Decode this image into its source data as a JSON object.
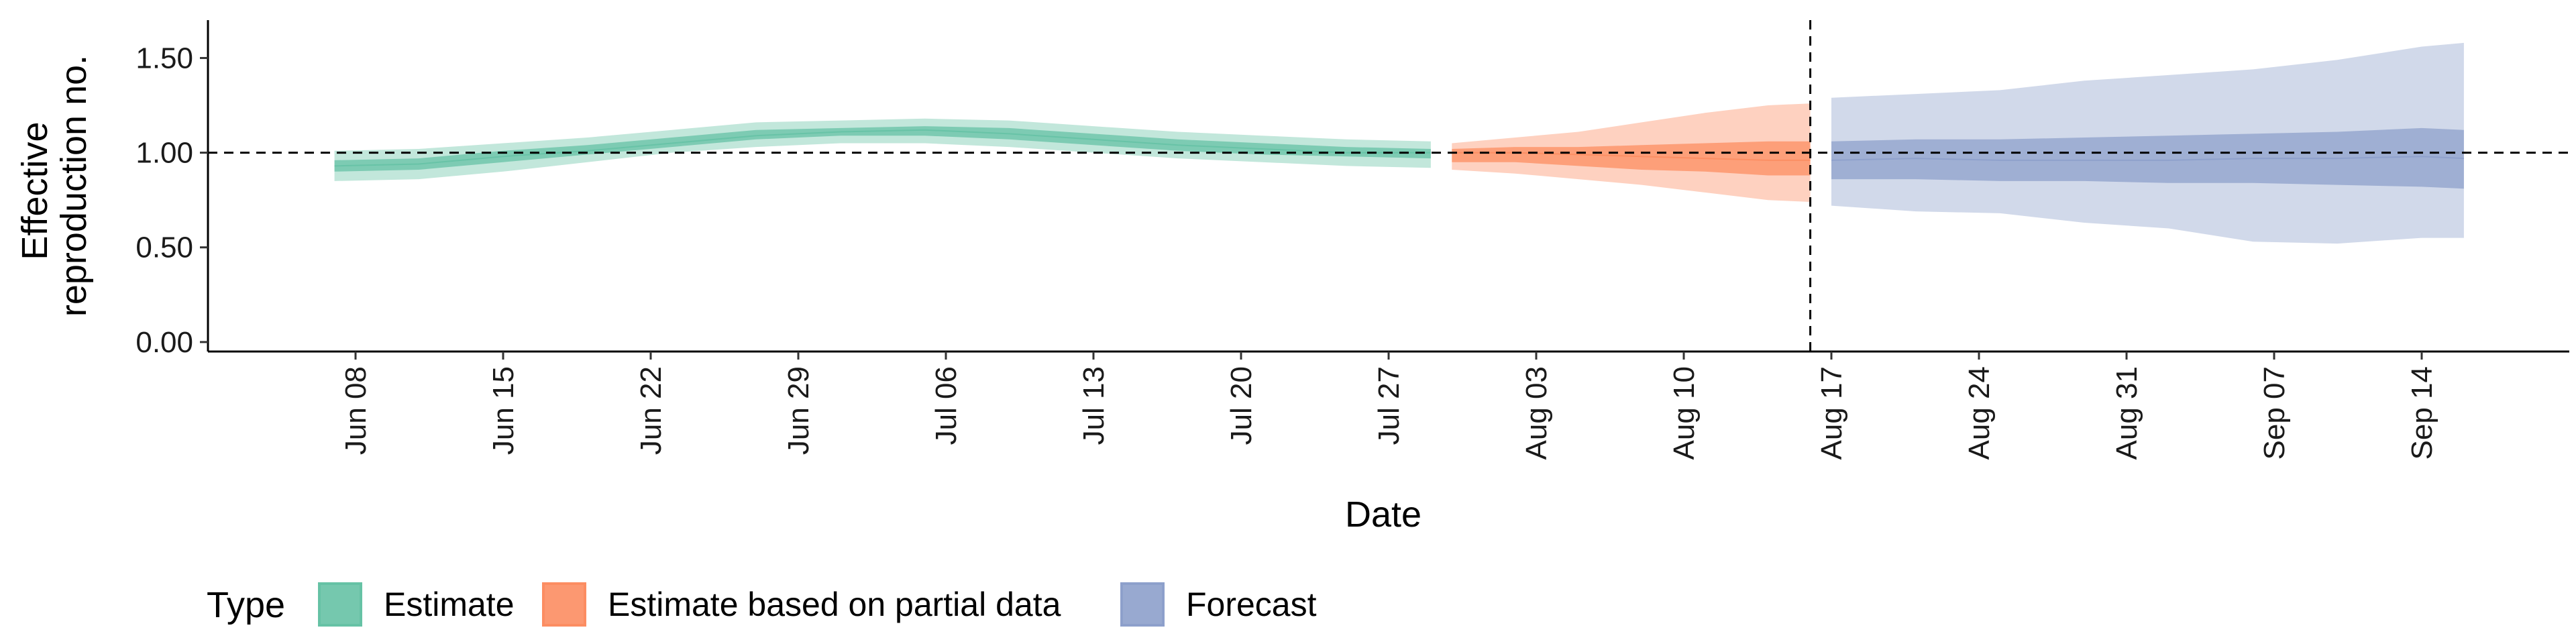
{
  "chart_data": {
    "type": "area",
    "xlabel": "Date",
    "ylabel_lines": [
      "Effective",
      "reproduction no."
    ],
    "ylim": [
      -0.05,
      1.7
    ],
    "y_ticks": [
      "0.00",
      "0.50",
      "1.00",
      "1.50"
    ],
    "y_tick_values": [
      0,
      0.5,
      1.0,
      1.5
    ],
    "x_axis_start": "2020-06-01",
    "x_axis_end": "2020-09-21",
    "x_ticks": [
      "Jun 08",
      "Jun 15",
      "Jun 22",
      "Jun 29",
      "Jul 06",
      "Jul 13",
      "Jul 20",
      "Jul 27",
      "Aug 03",
      "Aug 10",
      "Aug 17",
      "Aug 24",
      "Aug 31",
      "Sep 07",
      "Sep 14"
    ],
    "x_tick_dates": [
      "2020-06-08",
      "2020-06-15",
      "2020-06-22",
      "2020-06-29",
      "2020-07-06",
      "2020-07-13",
      "2020-07-20",
      "2020-07-27",
      "2020-08-03",
      "2020-08-10",
      "2020-08-17",
      "2020-08-24",
      "2020-08-31",
      "2020-09-07",
      "2020-09-14"
    ],
    "reference_line_y": 1.0,
    "reference_line_date": "2020-08-16",
    "grid": false,
    "legend_position": "bottom-left",
    "legend_title": "Type",
    "series": [
      {
        "name": "Estimate",
        "color": "#66c2a5",
        "dates": [
          "2020-06-07",
          "2020-06-11",
          "2020-06-15",
          "2020-06-19",
          "2020-06-23",
          "2020-06-27",
          "2020-07-01",
          "2020-07-05",
          "2020-07-09",
          "2020-07-13",
          "2020-07-17",
          "2020-07-21",
          "2020-07-25",
          "2020-07-29"
        ],
        "median": [
          0.93,
          0.94,
          0.98,
          1.01,
          1.05,
          1.09,
          1.11,
          1.12,
          1.1,
          1.07,
          1.04,
          1.02,
          1.0,
          1.0
        ],
        "lower_50": [
          0.9,
          0.91,
          0.95,
          0.99,
          1.03,
          1.07,
          1.09,
          1.09,
          1.07,
          1.04,
          1.01,
          0.99,
          0.98,
          0.97
        ],
        "upper_50": [
          0.96,
          0.97,
          1.01,
          1.04,
          1.08,
          1.12,
          1.13,
          1.14,
          1.13,
          1.1,
          1.07,
          1.05,
          1.03,
          1.02
        ],
        "lower_90": [
          0.85,
          0.86,
          0.9,
          0.95,
          1.0,
          1.03,
          1.05,
          1.05,
          1.03,
          1.0,
          0.97,
          0.95,
          0.93,
          0.92
        ],
        "upper_90": [
          1.01,
          1.02,
          1.05,
          1.08,
          1.12,
          1.16,
          1.17,
          1.18,
          1.17,
          1.14,
          1.11,
          1.09,
          1.07,
          1.06
        ]
      },
      {
        "name": "Estimate based on partial data",
        "color": "#fc8d62",
        "dates": [
          "2020-07-30",
          "2020-08-02",
          "2020-08-05",
          "2020-08-08",
          "2020-08-11",
          "2020-08-14",
          "2020-08-16"
        ],
        "median": [
          1.0,
          1.0,
          0.99,
          0.98,
          0.97,
          0.96,
          0.96
        ],
        "lower_50": [
          0.95,
          0.95,
          0.93,
          0.91,
          0.9,
          0.88,
          0.88
        ],
        "upper_50": [
          1.02,
          1.03,
          1.03,
          1.04,
          1.05,
          1.06,
          1.06
        ],
        "lower_90": [
          0.91,
          0.89,
          0.86,
          0.83,
          0.79,
          0.75,
          0.74
        ],
        "upper_90": [
          1.05,
          1.08,
          1.11,
          1.16,
          1.21,
          1.25,
          1.26
        ]
      },
      {
        "name": "Forecast",
        "color": "#8da0cb",
        "dates": [
          "2020-08-17",
          "2020-08-21",
          "2020-08-25",
          "2020-08-29",
          "2020-09-02",
          "2020-09-06",
          "2020-09-10",
          "2020-09-14",
          "2020-09-16"
        ],
        "median": [
          0.96,
          0.97,
          0.96,
          0.96,
          0.96,
          0.97,
          0.97,
          0.98,
          0.97
        ],
        "lower_50": [
          0.86,
          0.86,
          0.85,
          0.85,
          0.84,
          0.84,
          0.83,
          0.82,
          0.81
        ],
        "upper_50": [
          1.06,
          1.07,
          1.07,
          1.08,
          1.09,
          1.1,
          1.11,
          1.13,
          1.12
        ],
        "lower_90": [
          0.72,
          0.69,
          0.68,
          0.63,
          0.6,
          0.53,
          0.52,
          0.55,
          0.55
        ],
        "upper_90": [
          1.29,
          1.31,
          1.33,
          1.38,
          1.41,
          1.44,
          1.49,
          1.56,
          1.58
        ]
      }
    ]
  }
}
